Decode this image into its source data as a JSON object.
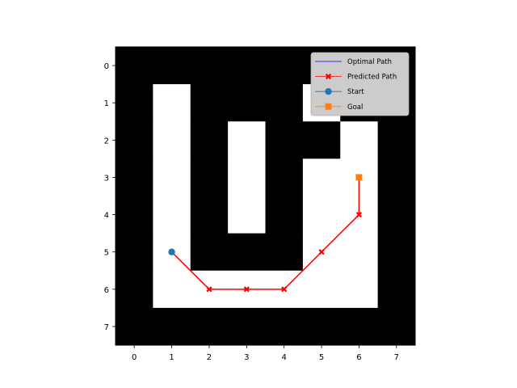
{
  "chart_data": {
    "type": "heatmap",
    "title": "",
    "xlabel": "",
    "ylabel": "",
    "xlim": [
      -0.5,
      7.5
    ],
    "ylim": [
      7.5,
      -0.5
    ],
    "x_ticks": [
      0,
      1,
      2,
      3,
      4,
      5,
      6,
      7
    ],
    "y_ticks": [
      0,
      1,
      2,
      3,
      4,
      5,
      6,
      7
    ],
    "x_tick_labels": [
      "0",
      "1",
      "2",
      "3",
      "4",
      "5",
      "6",
      "7"
    ],
    "y_tick_labels": [
      "0",
      "1",
      "2",
      "3",
      "4",
      "5",
      "6",
      "7"
    ],
    "grid": false,
    "legend_position": "top-right",
    "grid_map": [
      [
        0,
        0,
        0,
        0,
        0,
        0,
        0,
        0
      ],
      [
        0,
        1,
        0,
        0,
        0,
        1,
        0,
        0
      ],
      [
        0,
        1,
        0,
        1,
        0,
        0,
        1,
        0
      ],
      [
        0,
        1,
        0,
        1,
        0,
        1,
        1,
        0
      ],
      [
        0,
        1,
        0,
        1,
        0,
        1,
        1,
        0
      ],
      [
        0,
        1,
        0,
        0,
        0,
        1,
        1,
        0
      ],
      [
        0,
        1,
        1,
        1,
        1,
        1,
        1,
        0
      ],
      [
        0,
        0,
        0,
        0,
        0,
        0,
        0,
        0
      ]
    ],
    "cell_colors": {
      "wall": "#000000",
      "free": "#ffffff"
    },
    "series": [
      {
        "name": "Optimal Path",
        "color": "#0000ff",
        "marker": "none",
        "points": [
          [
            1,
            5
          ],
          [
            2,
            6
          ],
          [
            3,
            6
          ],
          [
            4,
            6
          ],
          [
            5,
            5
          ],
          [
            6,
            4
          ],
          [
            6,
            3
          ]
        ]
      },
      {
        "name": "Predicted Path",
        "color": "#ff0000",
        "marker": "x",
        "points": [
          [
            1,
            5
          ],
          [
            2,
            6
          ],
          [
            3,
            6
          ],
          [
            4,
            6
          ],
          [
            5,
            5
          ],
          [
            6,
            4
          ],
          [
            6,
            3
          ]
        ]
      },
      {
        "name": "Start",
        "color": "#1f77b4",
        "marker": "circle",
        "points": [
          [
            1,
            5
          ]
        ]
      },
      {
        "name": "Goal",
        "color": "#ff7f0e",
        "marker": "square",
        "points": [
          [
            6,
            3
          ]
        ]
      }
    ]
  }
}
